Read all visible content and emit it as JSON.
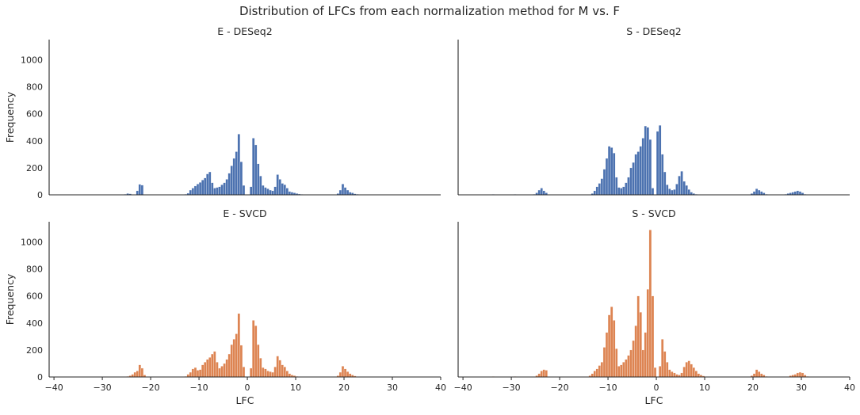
{
  "figure": {
    "title": "Distribution of LFCs from each normalization method for M vs. F",
    "colors": {
      "blue": "#4c72b0",
      "orange": "#dd8452",
      "edge": "#ffffff"
    },
    "axes_labels": {
      "x": "LFC",
      "y": "Frequency"
    }
  },
  "chart_data": [
    {
      "type": "bar",
      "title": "E - DESeq2",
      "color": "#4c72b0",
      "xlabel": "",
      "ylabel": "Frequency",
      "xlim": [
        -41,
        40
      ],
      "ylim": [
        0,
        1150
      ],
      "xticks": [
        -40,
        -30,
        -20,
        -10,
        0,
        10,
        20,
        30,
        40
      ],
      "yticks": [
        0,
        200,
        400,
        600,
        800,
        1000
      ],
      "bin_width": 0.5,
      "bins": [
        [
          -25.5,
          5
        ],
        [
          -25.0,
          10
        ],
        [
          -24.5,
          8
        ],
        [
          -23.0,
          30
        ],
        [
          -22.5,
          78
        ],
        [
          -22.0,
          72
        ],
        [
          -13.0,
          5
        ],
        [
          -12.5,
          12
        ],
        [
          -12.0,
          35
        ],
        [
          -11.5,
          50
        ],
        [
          -11.0,
          65
        ],
        [
          -10.5,
          80
        ],
        [
          -10.0,
          92
        ],
        [
          -9.5,
          110
        ],
        [
          -9.0,
          125
        ],
        [
          -8.5,
          155
        ],
        [
          -8.0,
          170
        ],
        [
          -7.5,
          90
        ],
        [
          -7.0,
          50
        ],
        [
          -6.5,
          55
        ],
        [
          -6.0,
          60
        ],
        [
          -5.5,
          75
        ],
        [
          -5.0,
          90
        ],
        [
          -4.5,
          115
        ],
        [
          -4.0,
          160
        ],
        [
          -3.5,
          215
        ],
        [
          -3.0,
          270
        ],
        [
          -2.5,
          320
        ],
        [
          -2.0,
          450
        ],
        [
          -1.5,
          245
        ],
        [
          -1.0,
          70
        ],
        [
          0.5,
          60
        ],
        [
          1.0,
          420
        ],
        [
          1.5,
          370
        ],
        [
          2.0,
          230
        ],
        [
          2.5,
          140
        ],
        [
          3.0,
          70
        ],
        [
          3.5,
          55
        ],
        [
          4.0,
          45
        ],
        [
          4.5,
          35
        ],
        [
          5.0,
          30
        ],
        [
          5.5,
          60
        ],
        [
          6.0,
          150
        ],
        [
          6.5,
          115
        ],
        [
          7.0,
          85
        ],
        [
          7.5,
          75
        ],
        [
          8.0,
          50
        ],
        [
          8.5,
          25
        ],
        [
          9.0,
          20
        ],
        [
          9.5,
          15
        ],
        [
          10.0,
          10
        ],
        [
          10.5,
          6
        ],
        [
          11.0,
          4
        ],
        [
          18.5,
          10
        ],
        [
          19.0,
          35
        ],
        [
          19.5,
          80
        ],
        [
          20.0,
          55
        ],
        [
          20.5,
          35
        ],
        [
          21.0,
          20
        ],
        [
          21.5,
          15
        ],
        [
          22.0,
          8
        ],
        [
          22.5,
          5
        ]
      ]
    },
    {
      "type": "bar",
      "title": "S - DESeq2",
      "color": "#4c72b0",
      "xlabel": "",
      "ylabel": "",
      "xlim": [
        -41,
        40
      ],
      "ylim": [
        0,
        1150
      ],
      "xticks": [
        -40,
        -30,
        -20,
        -10,
        0,
        10,
        20,
        30,
        40
      ],
      "yticks": [
        0,
        200,
        400,
        600,
        800,
        1000
      ],
      "bin_width": 0.5,
      "bins": [
        [
          -34.0,
          4
        ],
        [
          -29.5,
          4
        ],
        [
          -25.5,
          5
        ],
        [
          -25.0,
          15
        ],
        [
          -24.5,
          35
        ],
        [
          -24.0,
          50
        ],
        [
          -23.5,
          30
        ],
        [
          -23.0,
          15
        ],
        [
          -13.5,
          10
        ],
        [
          -13.0,
          30
        ],
        [
          -12.5,
          60
        ],
        [
          -12.0,
          85
        ],
        [
          -11.5,
          120
        ],
        [
          -11.0,
          190
        ],
        [
          -10.5,
          270
        ],
        [
          -10.0,
          360
        ],
        [
          -9.5,
          350
        ],
        [
          -9.0,
          310
        ],
        [
          -8.5,
          130
        ],
        [
          -8.0,
          55
        ],
        [
          -7.5,
          50
        ],
        [
          -7.0,
          60
        ],
        [
          -6.5,
          90
        ],
        [
          -6.0,
          130
        ],
        [
          -5.5,
          200
        ],
        [
          -5.0,
          240
        ],
        [
          -4.5,
          300
        ],
        [
          -4.0,
          320
        ],
        [
          -3.5,
          360
        ],
        [
          -3.0,
          420
        ],
        [
          -2.5,
          510
        ],
        [
          -2.0,
          500
        ],
        [
          -1.5,
          410
        ],
        [
          -1.0,
          50
        ],
        [
          0.0,
          470
        ],
        [
          0.5,
          515
        ],
        [
          1.0,
          300
        ],
        [
          1.5,
          170
        ],
        [
          2.0,
          75
        ],
        [
          2.5,
          45
        ],
        [
          3.0,
          35
        ],
        [
          3.5,
          40
        ],
        [
          4.0,
          80
        ],
        [
          4.5,
          140
        ],
        [
          5.0,
          175
        ],
        [
          5.5,
          100
        ],
        [
          6.0,
          70
        ],
        [
          6.5,
          40
        ],
        [
          7.0,
          20
        ],
        [
          7.5,
          10
        ],
        [
          8.0,
          5
        ],
        [
          19.5,
          10
        ],
        [
          20.0,
          25
        ],
        [
          20.5,
          45
        ],
        [
          21.0,
          35
        ],
        [
          21.5,
          25
        ],
        [
          22.0,
          15
        ],
        [
          22.5,
          5
        ],
        [
          26.5,
          5
        ],
        [
          27.0,
          10
        ],
        [
          27.5,
          15
        ],
        [
          28.0,
          20
        ],
        [
          28.5,
          25
        ],
        [
          29.0,
          30
        ],
        [
          29.5,
          25
        ],
        [
          30.0,
          15
        ],
        [
          30.5,
          5
        ]
      ]
    },
    {
      "type": "bar",
      "title": "E - SVCD",
      "color": "#dd8452",
      "xlabel": "LFC",
      "ylabel": "Frequency",
      "xlim": [
        -41,
        40
      ],
      "ylim": [
        0,
        1150
      ],
      "xticks": [
        -40,
        -30,
        -20,
        -10,
        0,
        10,
        20,
        30,
        40
      ],
      "yticks": [
        0,
        200,
        400,
        600,
        800,
        1000
      ],
      "bin_width": 0.5,
      "bins": [
        [
          -25.0,
          5
        ],
        [
          -24.5,
          10
        ],
        [
          -24.0,
          20
        ],
        [
          -23.5,
          35
        ],
        [
          -23.0,
          45
        ],
        [
          -22.5,
          90
        ],
        [
          -22.0,
          65
        ],
        [
          -21.5,
          15
        ],
        [
          -13.0,
          5
        ],
        [
          -12.5,
          20
        ],
        [
          -12.0,
          35
        ],
        [
          -11.5,
          60
        ],
        [
          -11.0,
          70
        ],
        [
          -10.5,
          50
        ],
        [
          -10.0,
          55
        ],
        [
          -9.5,
          90
        ],
        [
          -9.0,
          110
        ],
        [
          -8.5,
          130
        ],
        [
          -8.0,
          145
        ],
        [
          -7.5,
          170
        ],
        [
          -7.0,
          190
        ],
        [
          -6.5,
          110
        ],
        [
          -6.0,
          65
        ],
        [
          -5.5,
          80
        ],
        [
          -5.0,
          100
        ],
        [
          -4.5,
          130
        ],
        [
          -4.0,
          170
        ],
        [
          -3.5,
          240
        ],
        [
          -3.0,
          280
        ],
        [
          -2.5,
          320
        ],
        [
          -2.0,
          470
        ],
        [
          -1.5,
          235
        ],
        [
          -1.0,
          75
        ],
        [
          0.5,
          65
        ],
        [
          1.0,
          420
        ],
        [
          1.5,
          380
        ],
        [
          2.0,
          240
        ],
        [
          2.5,
          140
        ],
        [
          3.0,
          70
        ],
        [
          3.5,
          60
        ],
        [
          4.0,
          45
        ],
        [
          4.5,
          40
        ],
        [
          5.0,
          35
        ],
        [
          5.5,
          75
        ],
        [
          6.0,
          155
        ],
        [
          6.5,
          125
        ],
        [
          7.0,
          90
        ],
        [
          7.5,
          75
        ],
        [
          8.0,
          45
        ],
        [
          8.5,
          25
        ],
        [
          9.0,
          15
        ],
        [
          9.5,
          10
        ],
        [
          10.0,
          5
        ],
        [
          18.5,
          10
        ],
        [
          19.0,
          35
        ],
        [
          19.5,
          80
        ],
        [
          20.0,
          60
        ],
        [
          20.5,
          40
        ],
        [
          21.0,
          25
        ],
        [
          21.5,
          15
        ],
        [
          22.0,
          8
        ]
      ]
    },
    {
      "type": "bar",
      "title": "S - SVCD",
      "color": "#dd8452",
      "xlabel": "LFC",
      "ylabel": "",
      "xlim": [
        -41,
        40
      ],
      "ylim": [
        0,
        1150
      ],
      "xticks": [
        -40,
        -30,
        -20,
        -10,
        0,
        10,
        20,
        30,
        40
      ],
      "yticks": [
        0,
        200,
        400,
        600,
        800,
        1000
      ],
      "bin_width": 0.5,
      "bins": [
        [
          -34.0,
          4
        ],
        [
          -29.5,
          4
        ],
        [
          -25.0,
          10
        ],
        [
          -24.5,
          25
        ],
        [
          -24.0,
          45
        ],
        [
          -23.5,
          55
        ],
        [
          -23.0,
          50
        ],
        [
          -14.0,
          10
        ],
        [
          -13.5,
          25
        ],
        [
          -13.0,
          45
        ],
        [
          -12.5,
          60
        ],
        [
          -12.0,
          85
        ],
        [
          -11.5,
          110
        ],
        [
          -11.0,
          220
        ],
        [
          -10.5,
          330
        ],
        [
          -10.0,
          460
        ],
        [
          -9.5,
          520
        ],
        [
          -9.0,
          420
        ],
        [
          -8.5,
          210
        ],
        [
          -8.0,
          80
        ],
        [
          -7.5,
          90
        ],
        [
          -7.0,
          110
        ],
        [
          -6.5,
          130
        ],
        [
          -6.0,
          160
        ],
        [
          -5.5,
          200
        ],
        [
          -5.0,
          270
        ],
        [
          -4.5,
          380
        ],
        [
          -4.0,
          600
        ],
        [
          -3.5,
          480
        ],
        [
          -3.0,
          200
        ],
        [
          -2.5,
          330
        ],
        [
          -2.0,
          650
        ],
        [
          -1.5,
          1090
        ],
        [
          -1.0,
          600
        ],
        [
          -0.5,
          70
        ],
        [
          0.5,
          80
        ],
        [
          1.0,
          280
        ],
        [
          1.5,
          190
        ],
        [
          2.0,
          110
        ],
        [
          2.5,
          55
        ],
        [
          3.0,
          40
        ],
        [
          3.5,
          30
        ],
        [
          4.0,
          20
        ],
        [
          4.5,
          15
        ],
        [
          5.0,
          30
        ],
        [
          5.5,
          75
        ],
        [
          6.0,
          110
        ],
        [
          6.5,
          120
        ],
        [
          7.0,
          95
        ],
        [
          7.5,
          70
        ],
        [
          8.0,
          45
        ],
        [
          8.5,
          25
        ],
        [
          9.0,
          15
        ],
        [
          9.5,
          8
        ],
        [
          19.5,
          10
        ],
        [
          20.0,
          25
        ],
        [
          20.5,
          55
        ],
        [
          21.0,
          40
        ],
        [
          21.5,
          25
        ],
        [
          22.0,
          15
        ],
        [
          22.5,
          5
        ],
        [
          27.5,
          10
        ],
        [
          28.0,
          15
        ],
        [
          28.5,
          20
        ],
        [
          29.0,
          30
        ],
        [
          29.5,
          35
        ],
        [
          30.0,
          30
        ],
        [
          30.5,
          15
        ],
        [
          31.0,
          5
        ]
      ]
    }
  ]
}
